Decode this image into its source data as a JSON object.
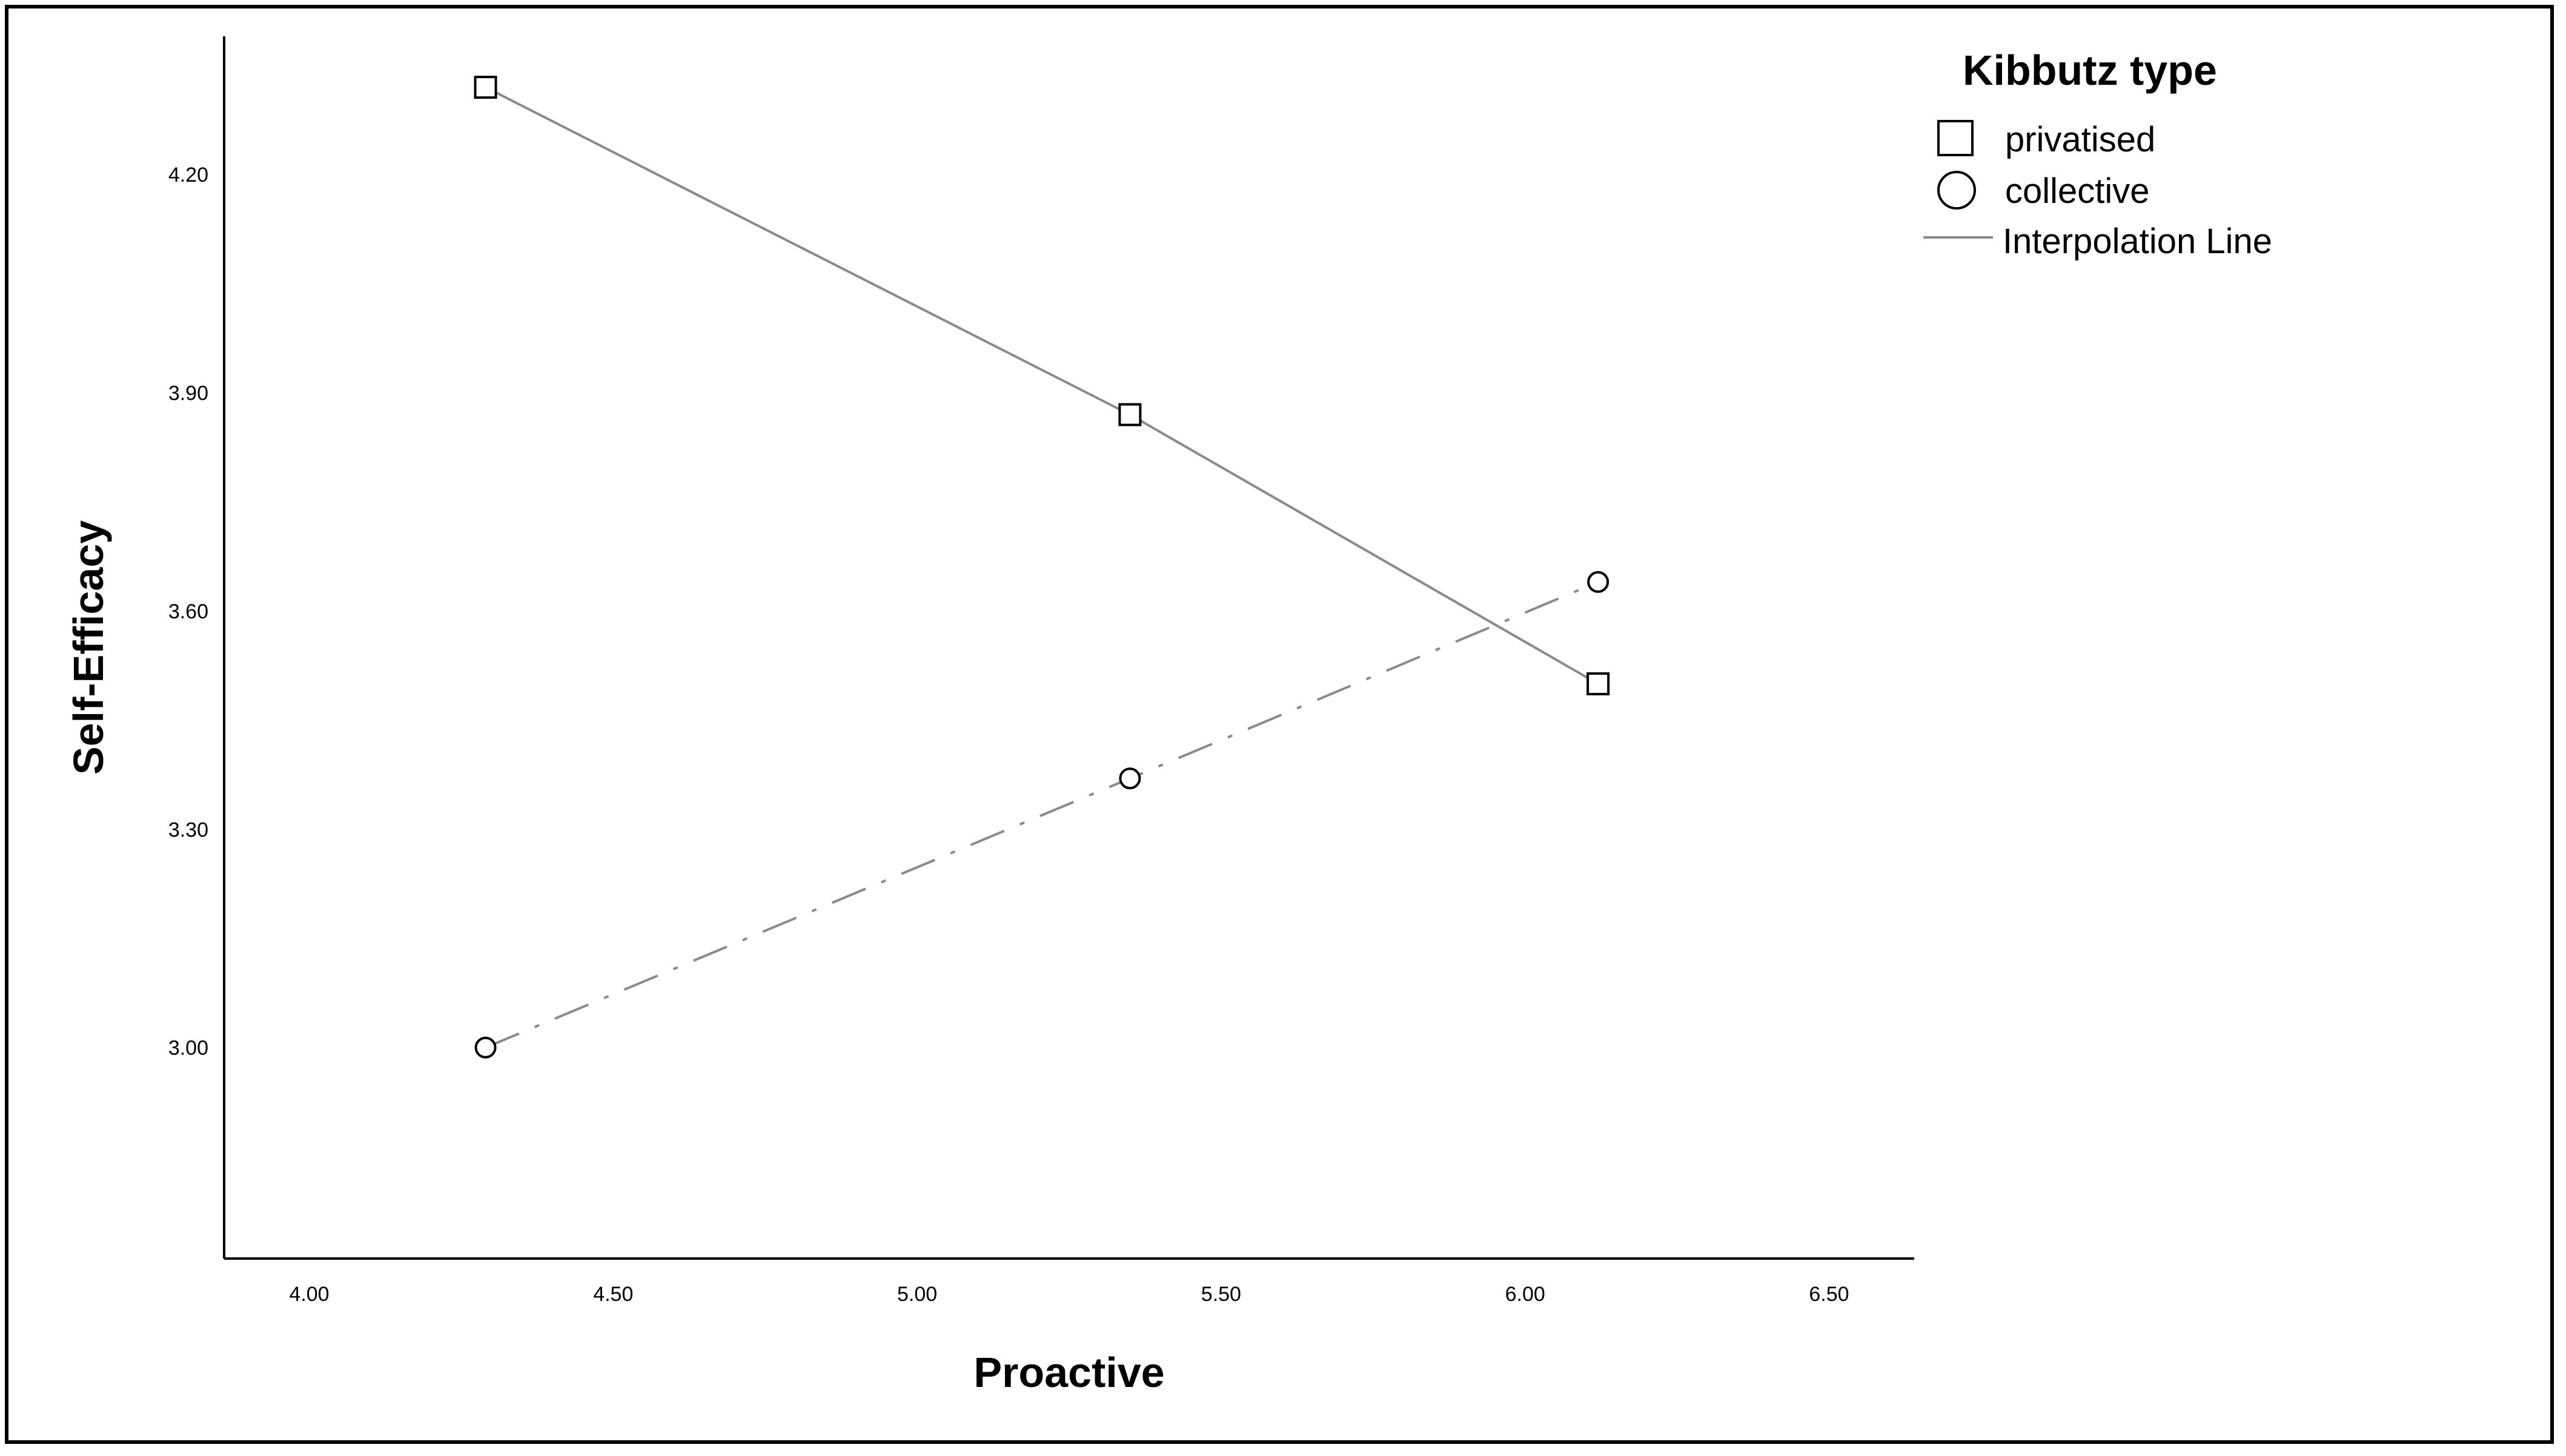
{
  "chart_data": {
    "type": "line",
    "xlabel": "Proactive",
    "ylabel": "Self-Efficacy",
    "xlim": [
      3.86,
      6.64
    ],
    "ylim": [
      2.71,
      4.39
    ],
    "xticks": [
      4.0,
      4.5,
      5.0,
      5.5,
      6.0,
      6.5
    ],
    "xtick_labels": [
      "4.00",
      "4.50",
      "5.00",
      "5.50",
      "6.00",
      "6.50"
    ],
    "yticks": [
      3.0,
      3.3,
      3.6,
      3.9,
      4.2
    ],
    "ytick_labels": [
      "3.00",
      "3.30",
      "3.60",
      "3.90",
      "4.20"
    ],
    "grid": false,
    "legend": {
      "title": "Kibbutz type",
      "placement": "top-right",
      "entries": [
        "privatised",
        "collective",
        "Interpolation Line"
      ]
    },
    "series": [
      {
        "name": "privatised",
        "marker": "square",
        "line_style": "solid",
        "x": [
          4.29,
          5.35,
          6.12
        ],
        "y": [
          4.32,
          3.87,
          3.5
        ]
      },
      {
        "name": "collective",
        "marker": "circle",
        "line_style": "dash-dot",
        "x": [
          4.29,
          5.35,
          6.12
        ],
        "y": [
          3.0,
          3.37,
          3.64
        ]
      }
    ]
  },
  "colors": {
    "line": "#8a8a8a",
    "marker": "#000000",
    "axis": "#000000"
  }
}
